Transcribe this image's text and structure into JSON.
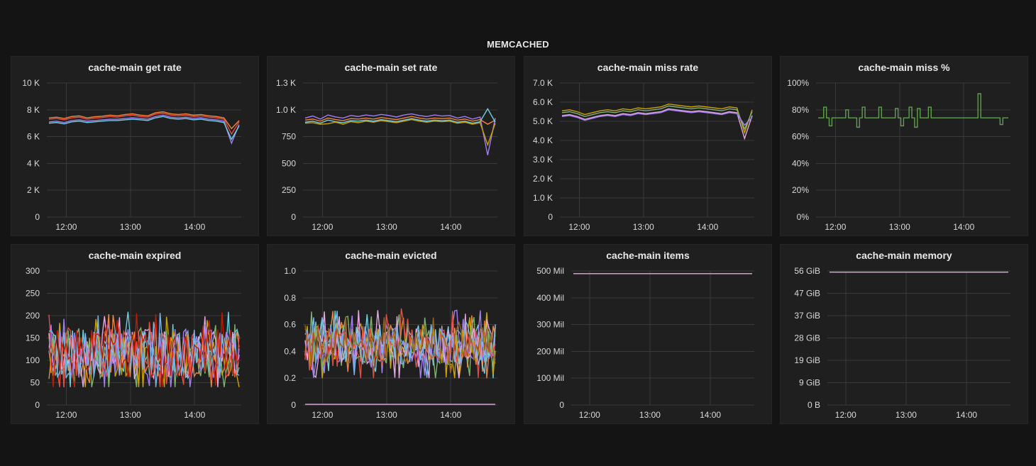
{
  "dashboard": {
    "row_title": "MEMCACHED"
  },
  "colors": {
    "orange": "#ef843c",
    "blue": "#6ed0e0",
    "yellow": "#cca300",
    "green": "#7eb26d",
    "pink": "#e5a8e2",
    "purple": "#a27ff0",
    "red": "#e24d42",
    "lightblue": "#7ab3e8",
    "olive": "#bfb33b",
    "teal": "#3fa290",
    "darkred": "#bf1b00",
    "brown": "#96601f"
  },
  "chart_data": [
    {
      "id": "get-rate",
      "type": "line",
      "title": "cache-main get rate",
      "yticks": [
        "10 K",
        "8 K",
        "6 K",
        "4 K",
        "2 K",
        "0"
      ],
      "ylim": [
        0,
        10000
      ],
      "xticks": [
        "12:00",
        "13:00",
        "14:00"
      ],
      "series": [
        {
          "color": "#ef843c",
          "values": [
            7400,
            7450,
            7350,
            7500,
            7550,
            7400,
            7480,
            7520,
            7600,
            7550,
            7650,
            7700,
            7600,
            7550,
            7780,
            7850,
            7700,
            7650,
            7700,
            7600,
            7650,
            7550,
            7500,
            7400,
            6600,
            7200
          ]
        },
        {
          "color": "#e24d42",
          "values": [
            7300,
            7350,
            7250,
            7400,
            7450,
            7300,
            7380,
            7420,
            7500,
            7450,
            7550,
            7600,
            7500,
            7450,
            7680,
            7750,
            7600,
            7550,
            7600,
            7500,
            7550,
            7450,
            7400,
            7300,
            6200,
            7100
          ]
        },
        {
          "color": "#a27ff0",
          "values": [
            7100,
            7150,
            7050,
            7200,
            7250,
            7150,
            7200,
            7250,
            7300,
            7300,
            7350,
            7400,
            7350,
            7300,
            7500,
            7600,
            7450,
            7400,
            7450,
            7350,
            7400,
            7300,
            7250,
            7150,
            5500,
            6900
          ]
        },
        {
          "color": "#6ed0e0",
          "values": [
            7000,
            7050,
            6950,
            7100,
            7150,
            7050,
            7100,
            7150,
            7200,
            7200,
            7250,
            7300,
            7250,
            7200,
            7400,
            7500,
            7350,
            7300,
            7350,
            7250,
            7300,
            7200,
            7150,
            7050,
            5800,
            6800
          ]
        }
      ]
    },
    {
      "id": "set-rate",
      "type": "line",
      "title": "cache-main set rate",
      "yticks": [
        "1.3 K",
        "1.0 K",
        "750",
        "500",
        "250",
        "0"
      ],
      "ylim": [
        0,
        1300
      ],
      "xticks": [
        "12:00",
        "13:00",
        "14:00"
      ],
      "series": [
        {
          "color": "#a27ff0",
          "values": [
            960,
            980,
            950,
            990,
            970,
            960,
            985,
            975,
            990,
            980,
            995,
            985,
            970,
            990,
            1000,
            985,
            975,
            990,
            980,
            985,
            960,
            975,
            950,
            970,
            600,
            960
          ]
        },
        {
          "color": "#ef843c",
          "values": [
            940,
            950,
            930,
            960,
            945,
            935,
            955,
            950,
            960,
            950,
            965,
            955,
            945,
            960,
            975,
            960,
            950,
            960,
            955,
            960,
            940,
            950,
            930,
            945,
            900,
            940
          ]
        },
        {
          "color": "#6ed0e0",
          "values": [
            920,
            930,
            910,
            940,
            925,
            915,
            935,
            930,
            940,
            930,
            945,
            935,
            925,
            940,
            955,
            940,
            930,
            940,
            935,
            940,
            920,
            930,
            910,
            925,
            1050,
            920
          ]
        },
        {
          "color": "#cca300",
          "values": [
            910,
            915,
            900,
            905,
            920,
            900,
            925,
            915,
            930,
            920,
            935,
            925,
            915,
            930,
            945,
            930,
            920,
            930,
            925,
            930,
            910,
            920,
            900,
            915,
            700,
            910
          ]
        }
      ]
    },
    {
      "id": "miss-rate",
      "type": "line",
      "title": "cache-main miss rate",
      "yticks": [
        "7.0 K",
        "6.0 K",
        "5.0 K",
        "4.0 K",
        "3.0 K",
        "2.0 K",
        "1.0 K",
        "0"
      ],
      "ylim": [
        0,
        7000
      ],
      "xticks": [
        "12:00",
        "13:00",
        "14:00"
      ],
      "series": [
        {
          "color": "#cca300",
          "values": [
            5550,
            5600,
            5500,
            5350,
            5450,
            5550,
            5600,
            5550,
            5650,
            5600,
            5700,
            5650,
            5700,
            5750,
            5900,
            5850,
            5800,
            5750,
            5800,
            5750,
            5700,
            5650,
            5750,
            5700,
            4400,
            5600
          ]
        },
        {
          "color": "#7eb26d",
          "values": [
            5450,
            5500,
            5400,
            5250,
            5350,
            5450,
            5500,
            5450,
            5550,
            5500,
            5600,
            5550,
            5600,
            5650,
            5800,
            5750,
            5700,
            5650,
            5700,
            5650,
            5600,
            5550,
            5650,
            5600,
            4600,
            5500
          ]
        },
        {
          "color": "#e5a8e2",
          "values": [
            5300,
            5350,
            5250,
            5100,
            5200,
            5300,
            5350,
            5300,
            5400,
            5350,
            5450,
            5400,
            5450,
            5500,
            5650,
            5600,
            5550,
            5500,
            5550,
            5500,
            5450,
            5400,
            5500,
            5450,
            4100,
            5300
          ]
        },
        {
          "color": "#a27ff0",
          "values": [
            5250,
            5300,
            5200,
            5050,
            5150,
            5250,
            5300,
            5250,
            5350,
            5300,
            5400,
            5350,
            5400,
            5450,
            5600,
            5550,
            5500,
            5450,
            5500,
            5450,
            5400,
            5350,
            5450,
            5400,
            4800,
            5200
          ]
        }
      ]
    },
    {
      "id": "miss-pct",
      "type": "line",
      "title": "cache-main miss %",
      "yticks": [
        "100%",
        "80%",
        "60%",
        "40%",
        "20%",
        "0%"
      ],
      "ylim": [
        0,
        100
      ],
      "xticks": [
        "12:00",
        "13:00",
        "14:00"
      ],
      "series": [
        {
          "color": "#629e51",
          "values": [
            74,
            74,
            82,
            74,
            68,
            74,
            74,
            74,
            74,
            74,
            80,
            74,
            74,
            74,
            67,
            74,
            82,
            74,
            74,
            74,
            74,
            74,
            82,
            74,
            74,
            74,
            74,
            74,
            81,
            74,
            68,
            74,
            74,
            82,
            74,
            67,
            81,
            74,
            74,
            74,
            82,
            74,
            74,
            74,
            74,
            74,
            74,
            74,
            74,
            74,
            74,
            74,
            74,
            74,
            74,
            74,
            74,
            74,
            92,
            74,
            74,
            74,
            74,
            74,
            74,
            74,
            69,
            74,
            74,
            74
          ]
        }
      ]
    },
    {
      "id": "expired",
      "type": "line",
      "title": "cache-main expired",
      "yticks": [
        "300",
        "250",
        "200",
        "150",
        "100",
        "50",
        "0"
      ],
      "ylim": [
        0,
        300
      ],
      "xticks": [
        "12:00",
        "13:00",
        "14:00"
      ],
      "series": [
        {
          "color": "#ef843c",
          "seed": 3
        },
        {
          "color": "#6ed0e0",
          "seed": 7
        },
        {
          "color": "#cca300",
          "seed": 11
        },
        {
          "color": "#7eb26d",
          "seed": 13
        },
        {
          "color": "#e5a8e2",
          "seed": 17
        },
        {
          "color": "#a27ff0",
          "seed": 19
        },
        {
          "color": "#e24d42",
          "seed": 23
        },
        {
          "color": "#7ab3e8",
          "seed": 29
        },
        {
          "color": "#bf1b00",
          "seed": 31
        }
      ],
      "range": [
        40,
        240
      ],
      "center": 115
    },
    {
      "id": "evicted",
      "type": "line",
      "title": "cache-main evicted",
      "yticks": [
        "1.0",
        "0.8",
        "0.6",
        "0.4",
        "0.2",
        "0"
      ],
      "ylim": [
        0,
        1
      ],
      "xticks": [
        "12:00",
        "13:00",
        "14:00"
      ],
      "series": [
        {
          "color": "#ef843c",
          "seed": 5
        },
        {
          "color": "#6ed0e0",
          "seed": 9
        },
        {
          "color": "#cca300",
          "seed": 15
        },
        {
          "color": "#7eb26d",
          "seed": 21
        },
        {
          "color": "#e5a8e2",
          "seed": 25
        },
        {
          "color": "#a27ff0",
          "seed": 27
        },
        {
          "color": "#e24d42",
          "seed": 33
        },
        {
          "color": "#7ab3e8",
          "seed": 37
        },
        {
          "color": "#96601f",
          "seed": 41
        }
      ],
      "range": [
        0.2,
        0.75
      ],
      "center": 0.45,
      "baseline": {
        "color": "#e5a8e2",
        "value": 0.005
      }
    },
    {
      "id": "items",
      "type": "line",
      "title": "cache-main items",
      "yticks": [
        "500 Mil",
        "400 Mil",
        "300 Mil",
        "200 Mil",
        "100 Mil",
        "0"
      ],
      "ylim": [
        0,
        500000000
      ],
      "xticks": [
        "12:00",
        "13:00",
        "14:00"
      ],
      "series": [
        {
          "color": "#e5a8e2",
          "values": [
            490000000,
            490000000
          ]
        }
      ]
    },
    {
      "id": "memory",
      "type": "line",
      "title": "cache-main memory",
      "yticks": [
        "56 GiB",
        "47 GiB",
        "37 GiB",
        "28 GiB",
        "19 GiB",
        "9 GiB",
        "0 B"
      ],
      "ylim": [
        0,
        56
      ],
      "xticks": [
        "12:00",
        "13:00",
        "14:00"
      ],
      "series": [
        {
          "color": "#e5a8e2",
          "values": [
            55.5,
            55.5
          ]
        }
      ]
    }
  ]
}
